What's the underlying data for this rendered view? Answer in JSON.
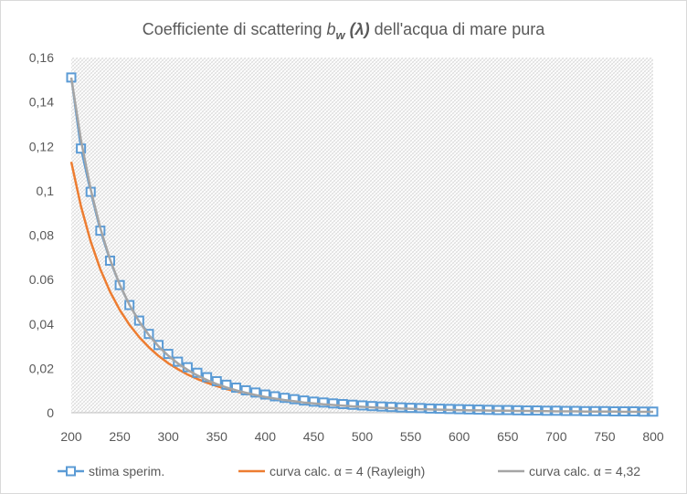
{
  "chart_data": {
    "type": "line",
    "title": {
      "prefix": "Coefficiente di scattering ",
      "symbol": "b",
      "subscript": "w",
      "argument": " (λ)",
      "suffix": " dell'acqua di mare pura"
    },
    "xlabel": "",
    "ylabel": "",
    "xlim": [
      200,
      800
    ],
    "ylim": [
      0,
      0.16
    ],
    "x_ticks": [
      "200",
      "250",
      "300",
      "350",
      "400",
      "450",
      "500",
      "550",
      "600",
      "650",
      "700",
      "750",
      "800"
    ],
    "y_ticks": [
      "0",
      "0,02",
      "0,04",
      "0.06",
      "0,08",
      "0,1",
      "0,12",
      "0,14",
      "0,16"
    ],
    "grid": "hatched plot area",
    "legend_position": "bottom",
    "series": [
      {
        "name": "stima sperim.",
        "color": "#5b9bd5",
        "marker": "square-open",
        "x": [
          200,
          210,
          220,
          230,
          240,
          250,
          260,
          270,
          280,
          290,
          300,
          310,
          320,
          330,
          340,
          350,
          360,
          370,
          380,
          390,
          400,
          410,
          420,
          430,
          440,
          450,
          460,
          470,
          480,
          490,
          500,
          510,
          520,
          530,
          540,
          550,
          560,
          570,
          580,
          590,
          600,
          610,
          620,
          630,
          640,
          650,
          660,
          670,
          680,
          690,
          700,
          710,
          720,
          730,
          740,
          750,
          760,
          770,
          780,
          790,
          800
        ],
        "values": [
          0.151,
          0.119,
          0.0995,
          0.082,
          0.0685,
          0.0575,
          0.0485,
          0.0415,
          0.0355,
          0.0305,
          0.0265,
          0.023,
          0.0205,
          0.018,
          0.016,
          0.0142,
          0.0126,
          0.0113,
          0.0101,
          0.0091,
          0.0082,
          0.0074,
          0.0067,
          0.0061,
          0.0055,
          0.005,
          0.0046,
          0.0042,
          0.0039,
          0.0036,
          0.0033,
          0.003,
          0.0028,
          0.0026,
          0.0024,
          0.0022,
          0.0021,
          0.0019,
          0.0018,
          0.0017,
          0.0016,
          0.0015,
          0.0014,
          0.0013,
          0.0012,
          0.0012,
          0.0011,
          0.001,
          0.001,
          0.0009,
          0.0009,
          0.0008,
          0.0008,
          0.0007,
          0.0007,
          0.0007,
          0.0006,
          0.0006,
          0.0006,
          0.0005,
          0.0005
        ]
      },
      {
        "name": "curva calc. α = 4 (Rayleigh)",
        "color": "#ed7d31",
        "marker": "none",
        "x": [
          200,
          210,
          220,
          230,
          240,
          250,
          260,
          270,
          280,
          290,
          300,
          310,
          320,
          330,
          340,
          350,
          360,
          370,
          380,
          390,
          400,
          410,
          420,
          430,
          440,
          450,
          460,
          470,
          480,
          490,
          500,
          510,
          520,
          530,
          540,
          550,
          560,
          570,
          580,
          590,
          600,
          610,
          620,
          630,
          640,
          650,
          660,
          670,
          680,
          690,
          700,
          710,
          720,
          730,
          740,
          750,
          760,
          770,
          780,
          790,
          800
        ],
        "values": [
          0.113,
          0.093,
          0.0772,
          0.0646,
          0.0545,
          0.0463,
          0.0396,
          0.0341,
          0.0295,
          0.0256,
          0.0223,
          0.0196,
          0.0172,
          0.0152,
          0.0135,
          0.012,
          0.0107,
          0.0096,
          0.0086,
          0.0078,
          0.0071,
          0.0064,
          0.0058,
          0.0053,
          0.0048,
          0.0044,
          0.0041,
          0.0037,
          0.0034,
          0.0032,
          0.0029,
          0.0027,
          0.0025,
          0.0023,
          0.0021,
          0.002,
          0.0018,
          0.0017,
          0.0016,
          0.0015,
          0.0014,
          0.0013,
          0.0012,
          0.0011,
          0.0011,
          0.001,
          0.0009,
          0.0009,
          0.0008,
          0.0008,
          0.0008,
          0.0007,
          0.0007,
          0.0006,
          0.0006,
          0.0006,
          0.0005,
          0.0005,
          0.0005,
          0.0005,
          0.0004
        ]
      },
      {
        "name": "curva calc. α = 4,32",
        "color": "#a5a5a5",
        "marker": "none",
        "x": [
          200,
          210,
          220,
          230,
          240,
          250,
          260,
          270,
          280,
          290,
          300,
          310,
          320,
          330,
          340,
          350,
          360,
          370,
          380,
          390,
          400,
          410,
          420,
          430,
          440,
          450,
          460,
          470,
          480,
          490,
          500,
          510,
          520,
          530,
          540,
          550,
          560,
          570,
          580,
          590,
          600,
          610,
          620,
          630,
          640,
          650,
          660,
          670,
          680,
          690,
          700,
          710,
          720,
          730,
          740,
          750,
          760,
          770,
          780,
          790,
          800
        ],
        "values": [
          0.151,
          0.1228,
          0.1007,
          0.0831,
          0.069,
          0.0577,
          0.0486,
          0.0411,
          0.035,
          0.0299,
          0.0257,
          0.0222,
          0.0193,
          0.0168,
          0.0147,
          0.0129,
          0.0114,
          0.0101,
          0.009,
          0.008,
          0.0071,
          0.0064,
          0.0057,
          0.0052,
          0.0046,
          0.0042,
          0.0038,
          0.0035,
          0.0032,
          0.0029,
          0.0027,
          0.0024,
          0.0022,
          0.0021,
          0.0019,
          0.0018,
          0.0016,
          0.0015,
          0.0014,
          0.0013,
          0.0012,
          0.0011,
          0.0011,
          0.001,
          0.0009,
          0.0009,
          0.0008,
          0.0008,
          0.0007,
          0.0007,
          0.0006,
          0.0006,
          0.0006,
          0.0005,
          0.0005,
          0.0005,
          0.0005,
          0.0004,
          0.0004,
          0.0004,
          0.0004
        ]
      }
    ]
  }
}
